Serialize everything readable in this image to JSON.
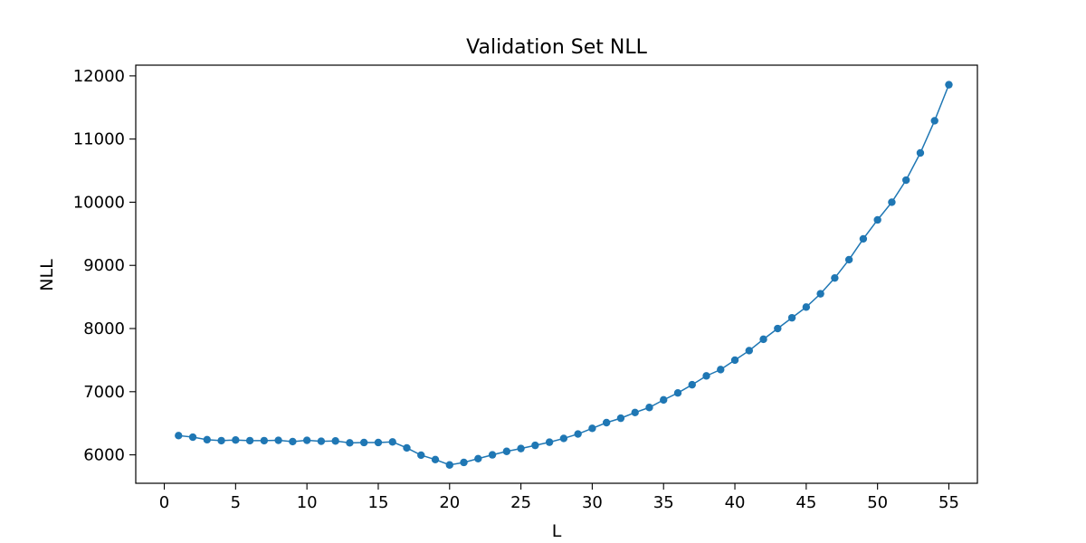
{
  "chart_data": {
    "type": "line",
    "title": "Validation Set NLL",
    "xlabel": "L",
    "ylabel": "NLL",
    "xlim": [
      -2,
      57
    ],
    "ylim": [
      5550,
      12170
    ],
    "xticks": [
      0,
      5,
      10,
      15,
      20,
      25,
      30,
      35,
      40,
      45,
      50,
      55
    ],
    "yticks": [
      6000,
      7000,
      8000,
      9000,
      10000,
      11000,
      12000
    ],
    "grid": false,
    "color": "#1f77b4",
    "series": [
      {
        "x": [
          1,
          2,
          3,
          4,
          5,
          6,
          7,
          8,
          9,
          10,
          11,
          12,
          13,
          14,
          15,
          16,
          17,
          18,
          19,
          20,
          21,
          22,
          23,
          24,
          25,
          26,
          27,
          28,
          29,
          30,
          31,
          32,
          33,
          34,
          35,
          36,
          37,
          38,
          39,
          40,
          41,
          42,
          43,
          44,
          45,
          46,
          47,
          48,
          49,
          50,
          51,
          52,
          53,
          54,
          55
        ],
        "y": [
          6305,
          6280,
          6240,
          6225,
          6235,
          6225,
          6225,
          6230,
          6210,
          6230,
          6215,
          6220,
          6190,
          6195,
          6195,
          6205,
          6110,
          5995,
          5925,
          5840,
          5880,
          5940,
          6000,
          6055,
          6100,
          6150,
          6200,
          6260,
          6330,
          6420,
          6510,
          6580,
          6670,
          6750,
          6870,
          6980,
          7110,
          7250,
          7350,
          7500,
          7650,
          7830,
          8000,
          8170,
          8340,
          8550,
          8800,
          9090,
          9420,
          9720,
          10000,
          10350,
          10780,
          11290,
          11860
        ]
      }
    ]
  }
}
